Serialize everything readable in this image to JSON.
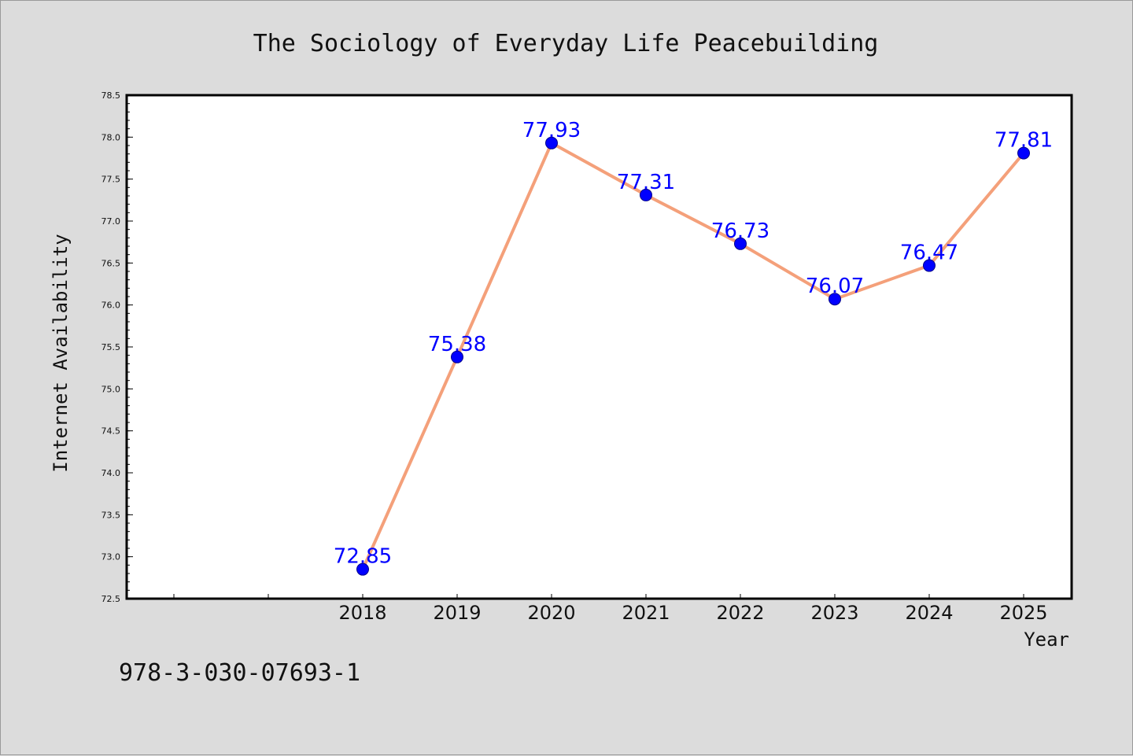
{
  "chart_data": {
    "type": "line",
    "title": "The Sociology of Everyday Life Peacebuilding",
    "xlabel": "Year",
    "ylabel": "Internet Availability",
    "categories": [
      "2018",
      "2019",
      "2020",
      "2021",
      "2022",
      "2023",
      "2024",
      "2025"
    ],
    "series": [
      {
        "values": [
          72.85,
          75.38,
          77.93,
          77.31,
          76.73,
          76.07,
          76.47,
          77.81
        ],
        "labels": [
          "72.85",
          "75.38",
          "77.93",
          "77.31",
          "76.73",
          "76.07",
          "76.47",
          "77.81"
        ],
        "line_color": "#f4a07a",
        "marker_color": "#0000ff"
      }
    ],
    "ylim": [
      72.5,
      78.5
    ],
    "yticks": [
      "72.5",
      "73.0",
      "73.5",
      "74.0",
      "74.5",
      "75.0",
      "75.5",
      "76.0",
      "76.5",
      "77.0",
      "77.5",
      "78.0",
      "78.5"
    ],
    "grid": false,
    "legend": "none"
  },
  "footer": {
    "isbn": "978-3-030-07693-1"
  },
  "colors": {
    "background": "#dcdcdc",
    "plot_background": "#ffffff",
    "label_color": "#0000ff"
  }
}
